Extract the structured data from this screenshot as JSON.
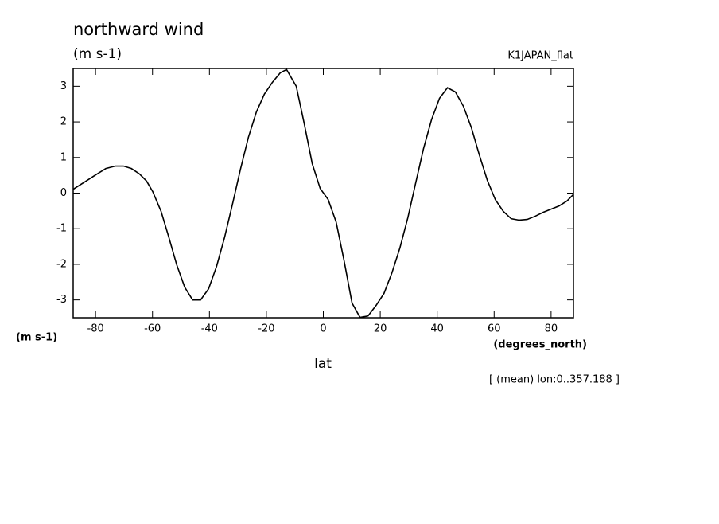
{
  "chart_data": {
    "type": "line",
    "title": "northward wind",
    "subtitle": "(m s-1)",
    "dataset_label": "K1JAPAN_flat",
    "y_axis_label": "(m s-1)",
    "x_axis_label": "lat",
    "x_units_label": "(degrees_north)",
    "annotation": "[ (mean) lon:0..357.188 ]",
    "xlim": [
      -87.86,
      87.86
    ],
    "ylim": [
      -3.5,
      3.5
    ],
    "xticks": [
      -80,
      -60,
      -40,
      -20,
      0,
      20,
      40,
      60,
      80
    ],
    "yticks": [
      -3,
      -2,
      -1,
      0,
      1,
      2,
      3
    ],
    "grid": false,
    "series": [
      {
        "color": "#000000",
        "x": [
          -87.8,
          -83.9,
          -80,
          -76.4,
          -73,
          -70.2,
          -67.4,
          -64.6,
          -62.1,
          -59.9,
          -57,
          -54.3,
          -51.5,
          -48.7,
          -45.9,
          -43.1,
          -40.3,
          -37.5,
          -34.7,
          -31.9,
          -29.1,
          -26.3,
          -23.5,
          -20.7,
          -17.9,
          -15.1,
          -12.9,
          -9.5,
          -6.7,
          -3.9,
          -1.1,
          1.7,
          4.5,
          7.3,
          10.1,
          12.9,
          15.7,
          18.5,
          21.3,
          24.1,
          26.9,
          29.7,
          32.4,
          35.2,
          38,
          40.8,
          43.6,
          46.4,
          49.2,
          52,
          54.8,
          57.6,
          60.4,
          63.2,
          66,
          68.8,
          71.6,
          74.4,
          77.2,
          80,
          82.8,
          85.6,
          87.8
        ],
        "values": [
          0.11,
          0.31,
          0.51,
          0.69,
          0.76,
          0.76,
          0.69,
          0.54,
          0.34,
          0.04,
          -0.51,
          -1.23,
          -2.01,
          -2.64,
          -3.0,
          -3.0,
          -2.69,
          -2.06,
          -1.25,
          -0.31,
          0.67,
          1.57,
          2.28,
          2.78,
          3.11,
          3.38,
          3.47,
          3.0,
          1.95,
          0.83,
          0.13,
          -0.18,
          -0.81,
          -1.9,
          -3.09,
          -3.49,
          -3.45,
          -3.16,
          -2.82,
          -2.24,
          -1.54,
          -0.69,
          0.27,
          1.25,
          2.06,
          2.66,
          2.96,
          2.84,
          2.44,
          1.84,
          1.07,
          0.36,
          -0.18,
          -0.51,
          -0.72,
          -0.76,
          -0.74,
          -0.65,
          -0.54,
          -0.45,
          -0.36,
          -0.22,
          -0.04
        ]
      }
    ]
  }
}
